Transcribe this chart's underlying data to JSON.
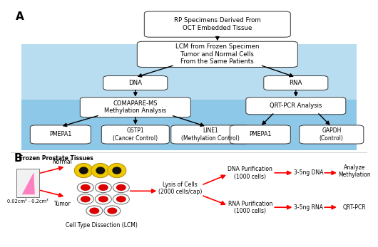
{
  "bg_color": "#ffffff",
  "panel_a_bg_light": "#b8ddf0",
  "panel_a_bg_dark": "#8dc8e8",
  "box_color": "#ffffff",
  "arrow_color": "#000000",
  "red_arrow": "#ff0000",
  "title_a": "A",
  "title_b": "B",
  "box_rp": "RP Specimens Derived From\nOCT Embedded Tissue",
  "box_lcm": "LCM from Frozen Specimen\nTumor and Normal Cells\nFrom the Same Patients",
  "box_dna": "DNA",
  "box_rna": "RNA",
  "box_compare": "COMAPARE-MS\nMethylation Analysis",
  "box_qrtpcr": "QRT-PCR Analysis",
  "box_pmepa1a": "PMEPA1",
  "box_gstp1": "GSTP1\n(Cancer Control)",
  "box_line1": "LINE1\n(Methylation Control)",
  "box_pmepa1b": "PMEPA1",
  "box_gapdh": "GAPDH\n(Control)",
  "b_frozen": "Frozen Prostate Tissues",
  "b_normal": "Normal",
  "b_tumor": "Tumor",
  "b_size": "0.02cm³ - 0.2cm³",
  "b_lcm": "Cell Type Dissection (LCM)",
  "b_lysis": "Lysis of Cells\n(2000 cells/cap)",
  "b_dna_pur": "DNA Purification\n(1000 cells)",
  "b_rna_pur": "RNA Purification\n(1000 cells)",
  "b_dna_ng": "3-5ng DNA",
  "b_rna_ng": "3-5ng RNA",
  "b_analyze": "Analyze\nMethylation",
  "b_qrtpcr": "QRT-PCR"
}
